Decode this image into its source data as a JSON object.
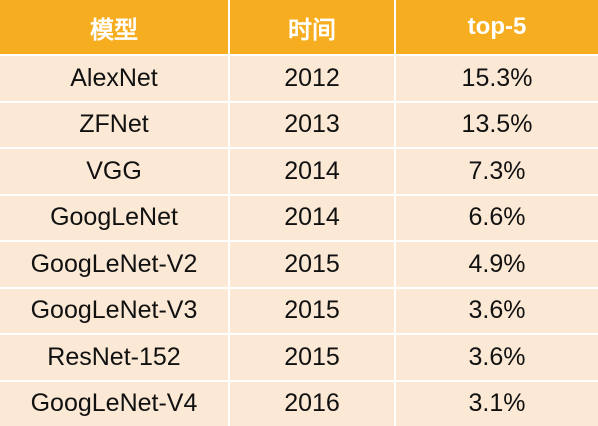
{
  "table": {
    "headers": [
      "模型",
      "时间",
      "top-5"
    ],
    "rows": [
      [
        "AlexNet",
        "2012",
        "15.3%"
      ],
      [
        "ZFNet",
        "2013",
        "13.5%"
      ],
      [
        "VGG",
        "2014",
        "7.3%"
      ],
      [
        "GoogLeNet",
        "2014",
        "6.6%"
      ],
      [
        "GoogLeNet-V2",
        "2015",
        "4.9%"
      ],
      [
        "GoogLeNet-V3",
        "2015",
        "3.6%"
      ],
      [
        "ResNet-152",
        "2015",
        "3.6%"
      ],
      [
        "GoogLeNet-V4",
        "2016",
        "3.1%"
      ]
    ]
  },
  "colors": {
    "header_bg": "#f6ad1f",
    "header_text": "#ffffff",
    "row_bg": "#fbe8d5",
    "row_text": "#111111"
  }
}
